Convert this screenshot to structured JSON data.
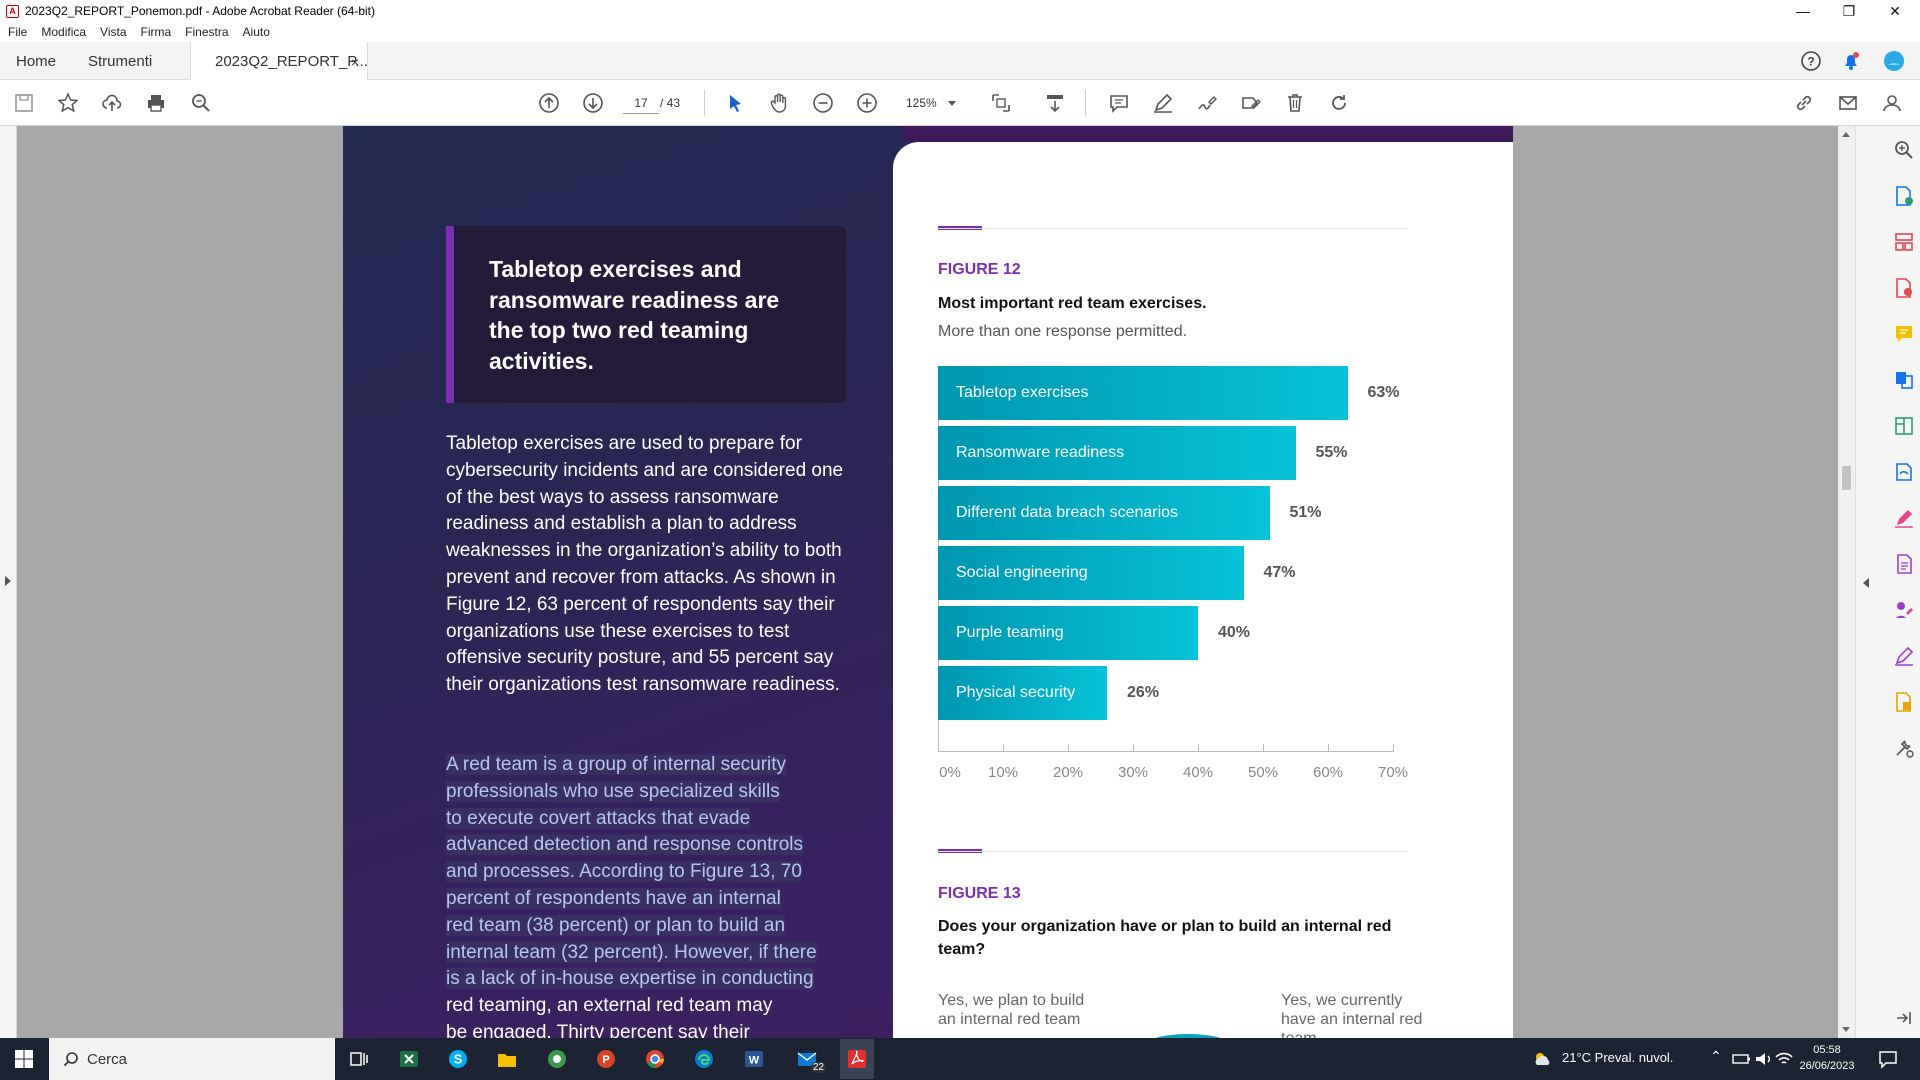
{
  "window": {
    "title": "2023Q2_REPORT_Ponemon.pdf - Adobe Acrobat Reader (64-bit)",
    "app_icon_glyph": "A"
  },
  "menu": [
    "File",
    "Modifica",
    "Vista",
    "Firma",
    "Finestra",
    "Aiuto"
  ],
  "tabs": {
    "home": "Home",
    "tools": "Strumenti",
    "document": "2023Q2_REPORT_P...",
    "close_glyph": "×"
  },
  "toolbar": {
    "page_current": "17",
    "page_total": "/ 43",
    "zoom": "125%",
    "icons": [
      "save-icon",
      "star-icon",
      "upload-icon",
      "print-icon",
      "search-icon",
      "page-up-icon",
      "page-down-icon",
      "select-cursor-icon",
      "hand-icon",
      "zoom-out-icon",
      "zoom-in-icon",
      "fit-page-icon",
      "scroll-mode-icon",
      "comment-icon",
      "pen-icon",
      "sign-icon",
      "fill-sign-icon",
      "delete-icon",
      "rotate-icon",
      "link-icon",
      "mail-icon",
      "account-icon"
    ]
  },
  "document": {
    "callout": "Tabletop exercises and ransomware readiness are the top two red teaming activities.",
    "para1": "Tabletop exercises are used to prepare for cybersecurity incidents and are considered one of the best ways to assess ransomware readiness and establish a plan to address weaknesses in the organization’s ability to both prevent and recover from attacks. As shown in Figure 12, 63 percent of respondents say their organizations use these exercises to test offensive security posture, and 55 percent say their organizations test ransomware readiness.",
    "para2_lines": [
      "A red team is a group of internal security",
      "professionals who use specialized skills",
      "to execute covert attacks that evade",
      "advanced detection and response controls",
      "and processes. According to Figure 13, 70",
      "percent of respondents have an internal",
      "red team (38 percent) or plan to build an",
      "internal team (32 percent). However, if there",
      "is a lack of in-house expertise in conducting",
      "red teaming, an external red team may",
      "be engaged. Thirty percent say their"
    ],
    "fig12": {
      "label": "FIGURE 12",
      "title": "Most important red team exercises.",
      "subtitle": "More than one response permitted."
    },
    "fig13": {
      "label": "FIGURE 13",
      "title": "Does your organization have or plan to build an internal red team?",
      "pie_left": "Yes, we plan to build an internal red team",
      "pie_right": "Yes, we currently have an internal red team"
    }
  },
  "chart_data": {
    "type": "bar",
    "orientation": "horizontal",
    "categories": [
      "Tabletop exercises",
      "Ransomware readiness",
      "Different data breach scenarios",
      "Social engineering",
      "Purple teaming",
      "Physical security"
    ],
    "values": [
      63,
      55,
      51,
      47,
      40,
      26
    ],
    "value_labels": [
      "63%",
      "55%",
      "51%",
      "47%",
      "40%",
      "26%"
    ],
    "xlim": [
      0,
      70
    ],
    "ticks": [
      "0%",
      "10%",
      "20%",
      "30%",
      "40%",
      "50%",
      "60%",
      "70%"
    ],
    "title": "Most important red team exercises.",
    "grid": false,
    "bar_color": "#08c3d8"
  },
  "right_panel_icons": [
    "zoom-search-icon",
    "create-pdf-icon",
    "organize-pages-icon",
    "export-pdf-icon",
    "comment-icon",
    "combine-files-icon",
    "edit-pdf-icon",
    "scan-icon",
    "fill-sign-icon",
    "protect-icon",
    "more-tools-icon",
    "sign-pen-icon",
    "send-review-icon",
    "customize-tools-icon",
    "collapse-panel-icon"
  ],
  "taskbar": {
    "search_label": "Cerca",
    "weather": "21°C  Preval. nuvol.",
    "time": "05:58",
    "date": "26/06/2023",
    "mail_badge": "22"
  },
  "colors": {
    "accent_purple": "#7a2fb0",
    "bar_teal": "#08c3d8",
    "page_bg": "#2b2654"
  }
}
